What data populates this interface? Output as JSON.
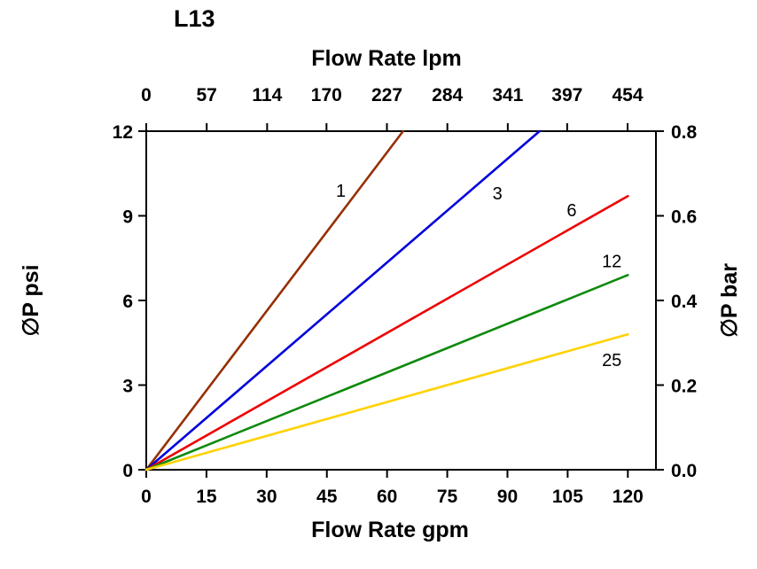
{
  "title": "L13",
  "chart_data": {
    "type": "line",
    "title": "L13",
    "grid": false,
    "legend": "inline-labels",
    "x_axis": {
      "label": "Flow Rate gpm",
      "range": [
        0,
        127
      ],
      "ticks": [
        0,
        15,
        30,
        45,
        60,
        75,
        90,
        105,
        120
      ],
      "tick_labels": [
        "0",
        "15",
        "30",
        "45",
        "60",
        "75",
        "90",
        "105",
        "120"
      ]
    },
    "x_axis_secondary": {
      "label": "Flow Rate lpm",
      "unit_conversion_lpm_per_gpm": 3.78541,
      "ticks": [
        0,
        57,
        114,
        170,
        227,
        284,
        341,
        397,
        454
      ],
      "tick_labels": [
        "0",
        "57",
        "114",
        "170",
        "227",
        "284",
        "341",
        "397",
        "454"
      ]
    },
    "y_axis": {
      "label": "∅P psi",
      "range": [
        0,
        12
      ],
      "ticks": [
        0,
        3,
        6,
        9,
        12
      ],
      "tick_labels": [
        "0",
        "3",
        "6",
        "9",
        "12"
      ]
    },
    "y_axis_secondary": {
      "label": "∅P bar",
      "range": [
        0,
        0.8
      ],
      "ticks": [
        0,
        0.2,
        0.4,
        0.6,
        0.8
      ],
      "tick_labels": [
        "0.0",
        "0.2",
        "0.4",
        "0.6",
        "0.8"
      ]
    },
    "series": [
      {
        "name": "1",
        "color": "#953000",
        "points": [
          [
            0,
            0
          ],
          [
            64,
            12
          ]
        ],
        "label_pos": [
          48.5,
          9.9
        ]
      },
      {
        "name": "3",
        "color": "#0000dd",
        "points": [
          [
            0,
            0
          ],
          [
            98,
            12
          ]
        ],
        "label_pos": [
          87.5,
          9.8
        ]
      },
      {
        "name": "6",
        "color": "#ee0000",
        "points": [
          [
            0,
            0
          ],
          [
            120,
            9.7
          ]
        ],
        "label_pos": [
          106,
          9.2
        ]
      },
      {
        "name": "12",
        "color": "#0d8a0d",
        "points": [
          [
            0,
            0
          ],
          [
            120,
            6.9
          ]
        ],
        "label_pos": [
          116,
          7.4
        ]
      },
      {
        "name": "25",
        "color": "#ffd200",
        "points": [
          [
            0,
            0
          ],
          [
            120,
            4.8
          ]
        ],
        "label_pos": [
          116,
          3.9
        ]
      }
    ]
  }
}
